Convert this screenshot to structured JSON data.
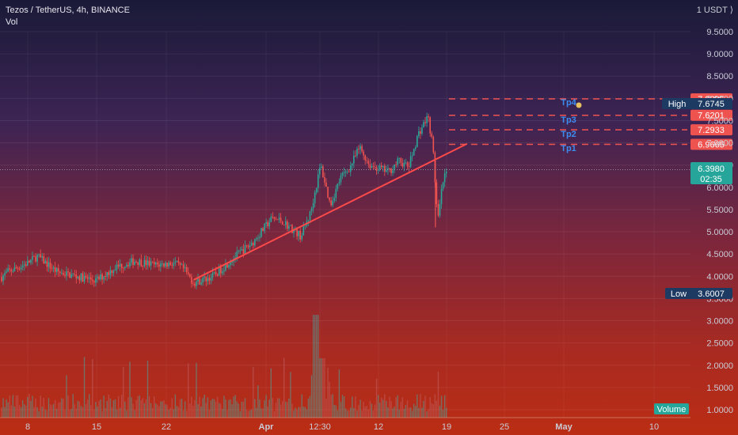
{
  "header": {
    "symbol": "Tezos / TetherUS, 4h, BINANCE",
    "indicator": "Vol"
  },
  "price_axis": {
    "unit": "1 USDT ⟩",
    "ticks": [
      "9.5000",
      "9.0000",
      "8.5000",
      "8.0000",
      "7.5000",
      "7.0000",
      "6.5000",
      "6.0000",
      "5.5000",
      "5.0000",
      "4.5000",
      "4.0000",
      "3.5000",
      "3.0000",
      "2.5000",
      "2.0000",
      "1.5000",
      "1.0000"
    ]
  },
  "time_axis": {
    "ticks": [
      {
        "label": "8",
        "bold": false
      },
      {
        "label": "15",
        "bold": false
      },
      {
        "label": "22",
        "bold": false
      },
      {
        "label": "Apr",
        "bold": true
      },
      {
        "label": "12:30",
        "bold": false
      },
      {
        "label": "12",
        "bold": false
      },
      {
        "label": "19",
        "bold": false
      },
      {
        "label": "25",
        "bold": false
      },
      {
        "label": "May",
        "bold": true
      },
      {
        "label": "10",
        "bold": false
      }
    ]
  },
  "targets": [
    {
      "name": "Tp1",
      "price": "6.9665"
    },
    {
      "name": "Tp2",
      "price": "7.2933"
    },
    {
      "name": "Tp3",
      "price": "7.6201"
    },
    {
      "name": "Tp4",
      "price": "7.9895"
    }
  ],
  "markers": {
    "high_label": "High",
    "high_value": "7.6745",
    "low_label": "Low",
    "low_value": "3.6007",
    "last_price": "6.3980",
    "countdown": "02:35",
    "volume_label": "Volume"
  },
  "colors": {
    "up": "#2aa89a",
    "down": "#ef5350",
    "target": "#ef5350",
    "trendline": "#ff4a4a",
    "tp_text": "#3d8cf0",
    "high_low_bg": "#1d3a62",
    "last_bg": "#26a69a"
  },
  "chart_data": {
    "type": "candlestick",
    "title": "Tezos / TetherUS, 4h, BINANCE",
    "y_range": [
      1.0,
      9.5
    ],
    "price_path": [
      {
        "x": "Mar 4",
        "y": 3.75
      },
      {
        "x": "Mar 6",
        "y": 4.1
      },
      {
        "x": "Mar 8",
        "y": 4.3
      },
      {
        "x": "Mar 9",
        "y": 4.45
      },
      {
        "x": "Mar 11",
        "y": 4.1
      },
      {
        "x": "Mar 13",
        "y": 4.0
      },
      {
        "x": "Mar 15",
        "y": 3.9
      },
      {
        "x": "Mar 17",
        "y": 4.2
      },
      {
        "x": "Mar 19",
        "y": 4.35
      },
      {
        "x": "Mar 21",
        "y": 4.25
      },
      {
        "x": "Mar 23",
        "y": 4.3
      },
      {
        "x": "Mar 24",
        "y": 4.15
      },
      {
        "x": "Mar 25",
        "y": 3.85
      },
      {
        "x": "Mar 27",
        "y": 4.0
      },
      {
        "x": "Mar 29",
        "y": 4.4
      },
      {
        "x": "Mar 31",
        "y": 4.75
      },
      {
        "x": "Apr 2",
        "y": 5.3
      },
      {
        "x": "Apr 3",
        "y": 5.25
      },
      {
        "x": "Apr 5",
        "y": 4.9
      },
      {
        "x": "Apr 6",
        "y": 5.45
      },
      {
        "x": "Apr 7",
        "y": 6.5
      },
      {
        "x": "Apr 8",
        "y": 5.6
      },
      {
        "x": "Apr 9",
        "y": 6.2
      },
      {
        "x": "Apr 10",
        "y": 6.45
      },
      {
        "x": "Apr 11",
        "y": 6.9
      },
      {
        "x": "Apr 12",
        "y": 6.5
      },
      {
        "x": "Apr 14",
        "y": 6.35
      },
      {
        "x": "Apr 15",
        "y": 6.6
      },
      {
        "x": "Apr 16",
        "y": 6.45
      },
      {
        "x": "Apr 17",
        "y": 7.2
      },
      {
        "x": "Apr 18",
        "y": 7.6
      },
      {
        "x": "Apr 18.5",
        "y": 6.9
      },
      {
        "x": "Apr 19",
        "y": 5.2
      },
      {
        "x": "Apr 19.5",
        "y": 6.1
      },
      {
        "x": "Apr 20",
        "y": 6.4
      }
    ],
    "high": 7.6745,
    "low": 3.6007,
    "last": 6.398,
    "trendline": {
      "from": {
        "x": "Mar 25",
        "y": 3.92
      },
      "to": {
        "x": "Apr 22",
        "y": 6.98
      }
    },
    "target_levels": [
      6.9665,
      7.2933,
      7.6201,
      7.9895
    ]
  }
}
